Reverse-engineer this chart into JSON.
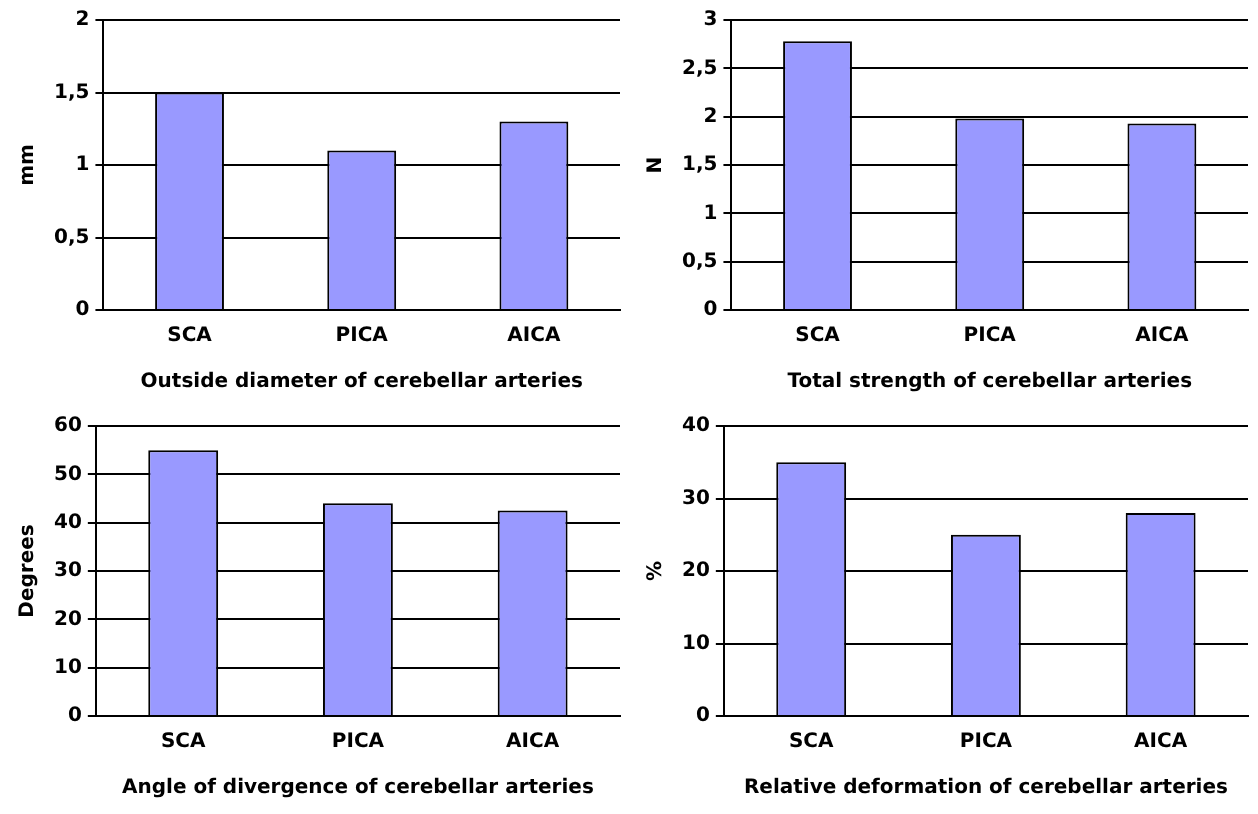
{
  "chart_data": [
    {
      "type": "bar",
      "xlabel": "Outside diameter of cerebellar arteries",
      "ylabel": "mm",
      "categories": [
        "SCA",
        "PICA",
        "AICA"
      ],
      "values": [
        1.5,
        1.1,
        1.3
      ],
      "color": "#9999ff",
      "ylim": [
        0,
        2
      ],
      "yticks": [
        0,
        {
          "value": 0.5,
          "label": "0,5"
        },
        1,
        {
          "value": 1.5,
          "label": "1,5"
        },
        2
      ],
      "grid": "y",
      "legend": false
    },
    {
      "type": "bar",
      "xlabel": "Total strength of cerebellar arteries",
      "ylabel": "N",
      "categories": [
        "SCA",
        "PICA",
        "AICA"
      ],
      "values": [
        2.78,
        1.98,
        1.93
      ],
      "color": "#9999ff",
      "ylim": [
        0,
        3
      ],
      "yticks": [
        0,
        {
          "value": 0.5,
          "label": "0,5"
        },
        1,
        {
          "value": 1.5,
          "label": "1,5"
        },
        2,
        {
          "value": 2.5,
          "label": "2,5"
        },
        3
      ],
      "grid": "y",
      "legend": false
    },
    {
      "type": "bar",
      "xlabel": "Angle of divergence of cerebellar arteries",
      "ylabel": "Degrees",
      "categories": [
        "SCA",
        "PICA",
        "AICA"
      ],
      "values": [
        55,
        44,
        42.5
      ],
      "color": "#9999ff",
      "ylim": [
        0,
        60
      ],
      "yticks": [
        0,
        10,
        20,
        30,
        40,
        50,
        60
      ],
      "grid": "y",
      "legend": false
    },
    {
      "type": "bar",
      "xlabel": "Relative deformation of cerebellar arteries",
      "ylabel": "%",
      "categories": [
        "SCA",
        "PICA",
        "AICA"
      ],
      "values": [
        35,
        25,
        28
      ],
      "color": "#9999ff",
      "ylim": [
        0,
        40
      ],
      "yticks": [
        0,
        10,
        20,
        30,
        40
      ],
      "grid": "y",
      "legend": false
    }
  ]
}
